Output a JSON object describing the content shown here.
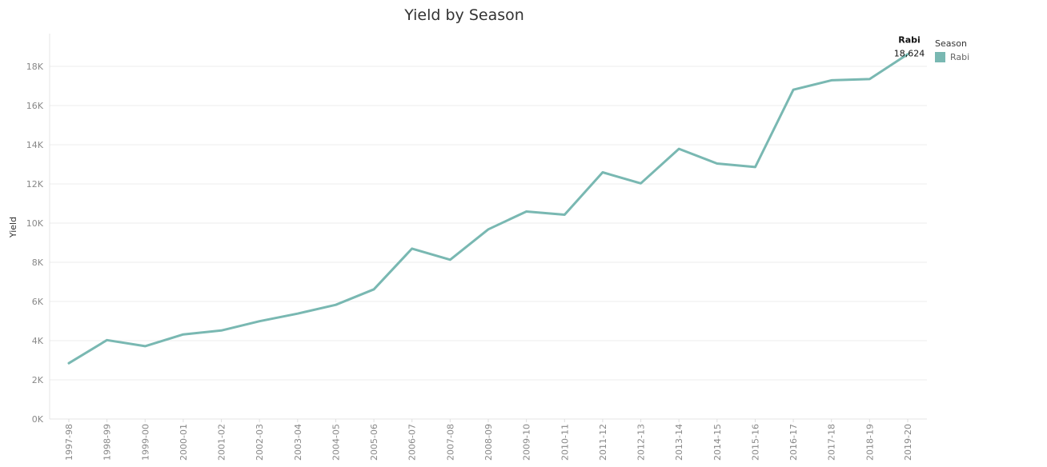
{
  "chart_data": {
    "type": "line",
    "title": "Yield by Season",
    "ylabel": "Yield",
    "xlabel": "",
    "ylim": [
      0,
      19000
    ],
    "yticks": [
      0,
      2000,
      4000,
      6000,
      8000,
      10000,
      12000,
      14000,
      16000,
      18000
    ],
    "yticklabels": [
      "0K",
      "2K",
      "4K",
      "6K",
      "8K",
      "10K",
      "12K",
      "14K",
      "16K",
      "18K"
    ],
    "grid": true,
    "legend_position": "top-right",
    "legend_title": "Season",
    "categories": [
      "1997-98",
      "1998-99",
      "1999-00",
      "2000-01",
      "2001-02",
      "2002-03",
      "2003-04",
      "2004-05",
      "2005-06",
      "2006-07",
      "2007-08",
      "2008-09",
      "2009-10",
      "2010-11",
      "2011-12",
      "2012-13",
      "2013-14",
      "2014-15",
      "2015-16",
      "2016-17",
      "2017-18",
      "2018-19",
      "2019-20"
    ],
    "series": [
      {
        "name": "Rabi",
        "color": "#79b8b2",
        "values": [
          2850,
          4030,
          3720,
          4320,
          4520,
          4990,
          5380,
          5830,
          6620,
          8700,
          8130,
          9680,
          10590,
          10430,
          12590,
          12030,
          13790,
          13040,
          12860,
          16810,
          17290,
          17350,
          18624
        ]
      }
    ],
    "end_label": {
      "series": "Rabi",
      "value": "18,624"
    }
  }
}
